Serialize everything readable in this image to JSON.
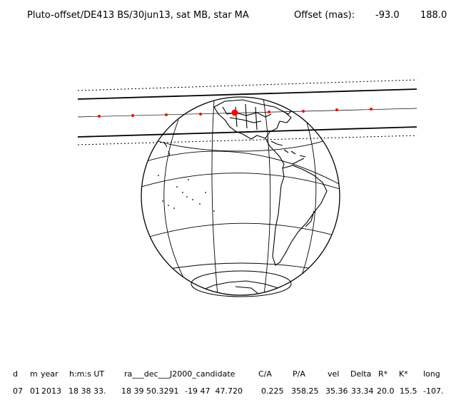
{
  "header": {
    "plot_label": "Pluto-offset/DE413 BS/30jun13, sat MB, star MA",
    "offset_label": "Offset (mas):",
    "offset_x": "-93.0",
    "offset_y": "188.0"
  },
  "table": {
    "headers": {
      "d": "d",
      "m": "m",
      "year": "year",
      "hms": "h:m:s UT",
      "radec": "ra___dec___J2000_candidate",
      "ca": "C/A",
      "pa": "P/A",
      "vel": "vel",
      "delta": "Delta",
      "rstar": "R*",
      "kstar": "K*",
      "long": "long"
    },
    "row": {
      "d": "07",
      "m": "01",
      "year": "2013",
      "hms": "18 38 33.",
      "ra": "18 39 50.3291",
      "dec": "-19 47  47.720",
      "ca": "0.225",
      "pa": "358.25",
      "vel": "35.36",
      "delta": "33.34",
      "rstar": "20.0",
      "kstar": "15.5",
      "long": "-107."
    }
  },
  "colors": {
    "ink": "#000000",
    "track": "#ff0000"
  }
}
